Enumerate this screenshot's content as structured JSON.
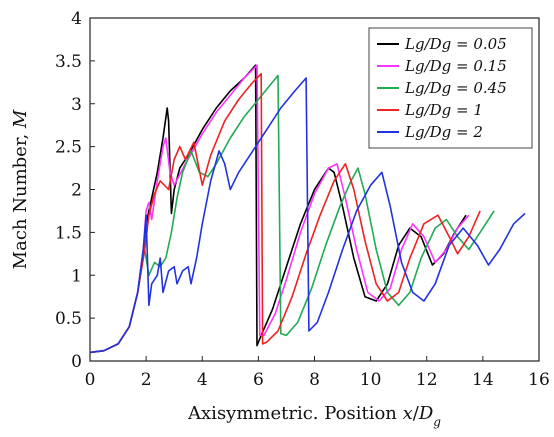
{
  "chart_data": {
    "type": "line",
    "xlabel": "Axisymmetric. Position x/Dg",
    "ylabel": "Mach Number, M",
    "xlim": [
      0,
      16
    ],
    "ylim": [
      0,
      4
    ],
    "xticks": [
      "0",
      "2",
      "4",
      "6",
      "8",
      "10",
      "12",
      "14",
      "16"
    ],
    "yticks": [
      "0",
      "0.5",
      "1",
      "1.5",
      "2",
      "2.5",
      "3",
      "3.5",
      "4"
    ],
    "grid": false,
    "legend_position": "top-right",
    "series": [
      {
        "name": "Lg/Dg = 0.05",
        "color": "#000000",
        "points": [
          [
            0,
            0.1
          ],
          [
            0.5,
            0.12
          ],
          [
            1.0,
            0.2
          ],
          [
            1.4,
            0.4
          ],
          [
            1.7,
            0.8
          ],
          [
            1.9,
            1.3
          ],
          [
            2.0,
            1.6
          ],
          [
            2.2,
            1.9
          ],
          [
            2.4,
            2.2
          ],
          [
            2.6,
            2.6
          ],
          [
            2.75,
            2.95
          ],
          [
            2.8,
            2.8
          ],
          [
            2.9,
            1.72
          ],
          [
            3.0,
            2.0
          ],
          [
            3.2,
            2.25
          ],
          [
            3.5,
            2.4
          ],
          [
            4.0,
            2.7
          ],
          [
            4.5,
            2.95
          ],
          [
            5.0,
            3.15
          ],
          [
            5.5,
            3.3
          ],
          [
            5.9,
            3.45
          ],
          [
            5.95,
            0.18
          ],
          [
            6.1,
            0.3
          ],
          [
            6.5,
            0.6
          ],
          [
            7.0,
            1.1
          ],
          [
            7.5,
            1.6
          ],
          [
            8.0,
            2.0
          ],
          [
            8.5,
            2.25
          ],
          [
            8.7,
            2.2
          ],
          [
            9.0,
            1.8
          ],
          [
            9.4,
            1.2
          ],
          [
            9.8,
            0.75
          ],
          [
            10.2,
            0.7
          ],
          [
            10.6,
            0.9
          ],
          [
            11.0,
            1.35
          ],
          [
            11.4,
            1.55
          ],
          [
            11.8,
            1.45
          ],
          [
            12.2,
            1.12
          ],
          [
            12.6,
            1.25
          ],
          [
            13.0,
            1.5
          ],
          [
            13.4,
            1.7
          ]
        ]
      },
      {
        "name": "Lg/Dg = 0.15",
        "color": "#ff33ff",
        "points": [
          [
            0,
            0.1
          ],
          [
            0.5,
            0.12
          ],
          [
            1.0,
            0.2
          ],
          [
            1.4,
            0.4
          ],
          [
            1.7,
            0.8
          ],
          [
            1.9,
            1.3
          ],
          [
            2.0,
            1.75
          ],
          [
            2.1,
            1.85
          ],
          [
            2.2,
            1.65
          ],
          [
            2.4,
            2.1
          ],
          [
            2.6,
            2.5
          ],
          [
            2.7,
            2.6
          ],
          [
            2.85,
            2.2
          ],
          [
            3.0,
            2.05
          ],
          [
            3.4,
            2.3
          ],
          [
            4.0,
            2.65
          ],
          [
            4.5,
            2.9
          ],
          [
            5.0,
            3.1
          ],
          [
            5.5,
            3.3
          ],
          [
            5.95,
            3.45
          ],
          [
            6.05,
            0.3
          ],
          [
            6.2,
            0.3
          ],
          [
            6.6,
            0.55
          ],
          [
            7.0,
            0.95
          ],
          [
            7.5,
            1.5
          ],
          [
            8.0,
            1.95
          ],
          [
            8.5,
            2.25
          ],
          [
            8.8,
            2.3
          ],
          [
            9.1,
            1.9
          ],
          [
            9.5,
            1.3
          ],
          [
            9.9,
            0.8
          ],
          [
            10.3,
            0.7
          ],
          [
            10.7,
            0.85
          ],
          [
            11.1,
            1.3
          ],
          [
            11.5,
            1.6
          ],
          [
            11.9,
            1.45
          ],
          [
            12.3,
            1.15
          ],
          [
            12.7,
            1.3
          ],
          [
            13.1,
            1.55
          ],
          [
            13.5,
            1.7
          ]
        ]
      },
      {
        "name": "Lg/Dg = 0.45",
        "color": "#22aa55",
        "points": [
          [
            0,
            0.1
          ],
          [
            0.5,
            0.12
          ],
          [
            1.0,
            0.2
          ],
          [
            1.4,
            0.4
          ],
          [
            1.7,
            0.8
          ],
          [
            1.95,
            1.3
          ],
          [
            2.1,
            1.0
          ],
          [
            2.3,
            1.15
          ],
          [
            2.5,
            1.1
          ],
          [
            2.7,
            1.2
          ],
          [
            2.9,
            1.5
          ],
          [
            3.1,
            1.9
          ],
          [
            3.3,
            2.2
          ],
          [
            3.6,
            2.45
          ],
          [
            3.9,
            2.2
          ],
          [
            4.2,
            2.15
          ],
          [
            4.5,
            2.3
          ],
          [
            5.0,
            2.6
          ],
          [
            5.5,
            2.85
          ],
          [
            6.0,
            3.05
          ],
          [
            6.5,
            3.25
          ],
          [
            6.7,
            3.33
          ],
          [
            6.8,
            0.32
          ],
          [
            7.0,
            0.3
          ],
          [
            7.4,
            0.45
          ],
          [
            7.9,
            0.85
          ],
          [
            8.4,
            1.35
          ],
          [
            8.9,
            1.8
          ],
          [
            9.3,
            2.1
          ],
          [
            9.55,
            2.25
          ],
          [
            9.8,
            1.95
          ],
          [
            10.2,
            1.3
          ],
          [
            10.6,
            0.8
          ],
          [
            11.0,
            0.65
          ],
          [
            11.4,
            0.8
          ],
          [
            11.8,
            1.2
          ],
          [
            12.3,
            1.55
          ],
          [
            12.7,
            1.65
          ],
          [
            13.1,
            1.45
          ],
          [
            13.5,
            1.3
          ],
          [
            13.9,
            1.5
          ],
          [
            14.4,
            1.75
          ]
        ]
      },
      {
        "name": "Lg/Dg = 1",
        "color": "#ee2222",
        "points": [
          [
            0,
            0.1
          ],
          [
            0.5,
            0.12
          ],
          [
            1.0,
            0.2
          ],
          [
            1.4,
            0.4
          ],
          [
            1.7,
            0.8
          ],
          [
            1.95,
            1.3
          ],
          [
            2.1,
            1.7
          ],
          [
            2.3,
            1.95
          ],
          [
            2.5,
            2.1
          ],
          [
            2.8,
            2.0
          ],
          [
            3.0,
            2.35
          ],
          [
            3.2,
            2.5
          ],
          [
            3.4,
            2.35
          ],
          [
            3.7,
            2.55
          ],
          [
            4.0,
            2.05
          ],
          [
            4.3,
            2.4
          ],
          [
            4.8,
            2.8
          ],
          [
            5.3,
            3.05
          ],
          [
            5.8,
            3.25
          ],
          [
            6.1,
            3.35
          ],
          [
            6.15,
            0.2
          ],
          [
            6.3,
            0.22
          ],
          [
            6.7,
            0.35
          ],
          [
            7.2,
            0.75
          ],
          [
            7.7,
            1.25
          ],
          [
            8.2,
            1.7
          ],
          [
            8.7,
            2.1
          ],
          [
            9.1,
            2.3
          ],
          [
            9.4,
            2.0
          ],
          [
            9.8,
            1.4
          ],
          [
            10.2,
            0.9
          ],
          [
            10.6,
            0.7
          ],
          [
            11.0,
            0.8
          ],
          [
            11.4,
            1.2
          ],
          [
            11.9,
            1.6
          ],
          [
            12.4,
            1.7
          ],
          [
            12.8,
            1.45
          ],
          [
            13.1,
            1.25
          ],
          [
            13.5,
            1.45
          ],
          [
            13.9,
            1.75
          ]
        ]
      },
      {
        "name": "Lg/Dg = 2",
        "color": "#2233dd",
        "points": [
          [
            0,
            0.1
          ],
          [
            0.5,
            0.12
          ],
          [
            1.0,
            0.2
          ],
          [
            1.4,
            0.4
          ],
          [
            1.7,
            0.8
          ],
          [
            1.9,
            1.3
          ],
          [
            2.0,
            1.7
          ],
          [
            2.1,
            0.65
          ],
          [
            2.2,
            0.9
          ],
          [
            2.4,
            1.0
          ],
          [
            2.5,
            1.2
          ],
          [
            2.6,
            0.8
          ],
          [
            2.8,
            1.05
          ],
          [
            3.0,
            1.1
          ],
          [
            3.1,
            0.9
          ],
          [
            3.3,
            1.05
          ],
          [
            3.5,
            1.1
          ],
          [
            3.6,
            0.9
          ],
          [
            3.8,
            1.2
          ],
          [
            4.0,
            1.6
          ],
          [
            4.3,
            2.1
          ],
          [
            4.6,
            2.45
          ],
          [
            4.8,
            2.3
          ],
          [
            5.0,
            2.0
          ],
          [
            5.3,
            2.2
          ],
          [
            5.8,
            2.45
          ],
          [
            6.3,
            2.7
          ],
          [
            6.8,
            2.95
          ],
          [
            7.3,
            3.15
          ],
          [
            7.7,
            3.3
          ],
          [
            7.8,
            0.35
          ],
          [
            8.1,
            0.45
          ],
          [
            8.5,
            0.8
          ],
          [
            9.0,
            1.3
          ],
          [
            9.5,
            1.75
          ],
          [
            10.0,
            2.05
          ],
          [
            10.4,
            2.2
          ],
          [
            10.7,
            1.8
          ],
          [
            11.1,
            1.15
          ],
          [
            11.5,
            0.8
          ],
          [
            11.9,
            0.7
          ],
          [
            12.3,
            0.9
          ],
          [
            12.8,
            1.35
          ],
          [
            13.3,
            1.55
          ],
          [
            13.8,
            1.35
          ],
          [
            14.2,
            1.12
          ],
          [
            14.6,
            1.3
          ],
          [
            15.1,
            1.6
          ],
          [
            15.5,
            1.72
          ]
        ]
      }
    ]
  }
}
